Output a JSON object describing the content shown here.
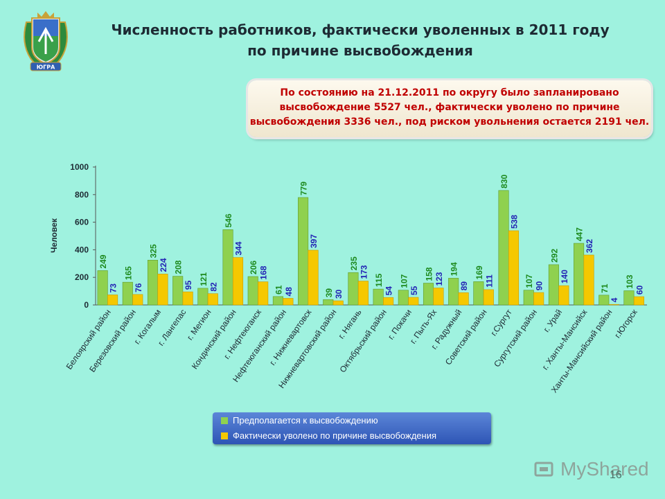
{
  "header": {
    "title_line1": "Численность работников, фактически уволенных в 2011 году",
    "title_line2": "по причине высвобождения"
  },
  "info_box": {
    "line1": "По состоянию на 21.12.2011 по округу было запланировано",
    "line2": "высвобождение  5527 чел., фактически уволено по причине",
    "line3": "высвобождения 3336 чел., под риском увольнения остается  2191 чел."
  },
  "logo": {
    "text": "ЮГРА"
  },
  "watermark": {
    "text": "MyShared"
  },
  "footer": {
    "page_number": "16"
  },
  "colors": {
    "background": "#9ff2df",
    "planned": "#8fd14f",
    "actual": "#f5c800",
    "planned_label": "#1e8a1e",
    "actual_label": "#2323b4",
    "info_text": "#c00000",
    "legend_bg": "#3e66c4"
  },
  "chart_data": {
    "type": "bar",
    "ylabel": "Человек",
    "ylim": [
      0,
      1000
    ],
    "yticks": [
      "0",
      "200",
      "400",
      "600",
      "800",
      "1000"
    ],
    "legend_position": "bottom",
    "categories": [
      "Белоярский район",
      "Березовский район",
      "г. Когалым",
      "г. Лангепас",
      "г. Мегион",
      "Кондинский район",
      "г. Нефтеюганск",
      "Нефтеюганский район",
      "г. Нижневартовск",
      "Нижневартовский район",
      "г. Нягань",
      "Октябрьский район",
      "г. Покачи",
      "г. Пыть-Ях",
      "г. Радужный",
      "Советский район",
      "г.Сургут",
      "Сургутский район",
      "г. Урай",
      "г. Ханты-Мансийск",
      "Ханты-Мансийский район",
      "г.Югорск"
    ],
    "series": [
      {
        "name": "Предполагается к высвобождению",
        "values": [
          249,
          165,
          325,
          208,
          121,
          546,
          206,
          61,
          779,
          39,
          235,
          115,
          107,
          158,
          194,
          169,
          830,
          107,
          292,
          447,
          71,
          103
        ]
      },
      {
        "name": "Фактически уволено по причине высвобождения",
        "values": [
          73,
          76,
          224,
          95,
          82,
          344,
          168,
          48,
          397,
          30,
          173,
          54,
          55,
          123,
          89,
          111,
          538,
          90,
          140,
          362,
          4,
          60
        ]
      }
    ]
  }
}
